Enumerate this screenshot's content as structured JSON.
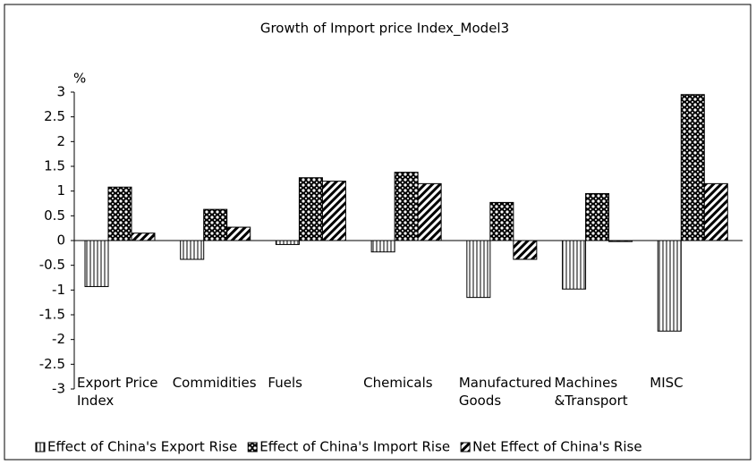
{
  "chart_data": {
    "type": "bar",
    "title": "Growth of Import price Index_Model3",
    "y_label": "%",
    "categories": [
      "Export Price Index",
      "Commidities",
      "Fuels",
      "Chemicals",
      "Manufactured Goods",
      "Machines &Transport",
      "MISC"
    ],
    "series": [
      {
        "name": "Effect of China's Export Rise",
        "color": "#000000",
        "values": [
          -0.93,
          -0.38,
          -0.08,
          -0.23,
          -1.15,
          -0.98,
          -1.83
        ]
      },
      {
        "name": "Effect of China's Import Rise",
        "color": "#000000",
        "values": [
          1.08,
          0.63,
          1.27,
          1.38,
          0.77,
          0.95,
          2.95
        ]
      },
      {
        "name": "Net Effect of China's Rise",
        "color": "#000000",
        "values": [
          0.15,
          0.27,
          1.2,
          1.15,
          -0.38,
          -0.02,
          1.15
        ]
      }
    ],
    "ylim": [
      -3,
      3
    ],
    "yticks": [
      -3,
      -2.5,
      -2,
      -1.5,
      -1,
      -0.5,
      0,
      0.5,
      1,
      1.5,
      2,
      2.5,
      3
    ],
    "grid": false,
    "legend": "bottom"
  }
}
